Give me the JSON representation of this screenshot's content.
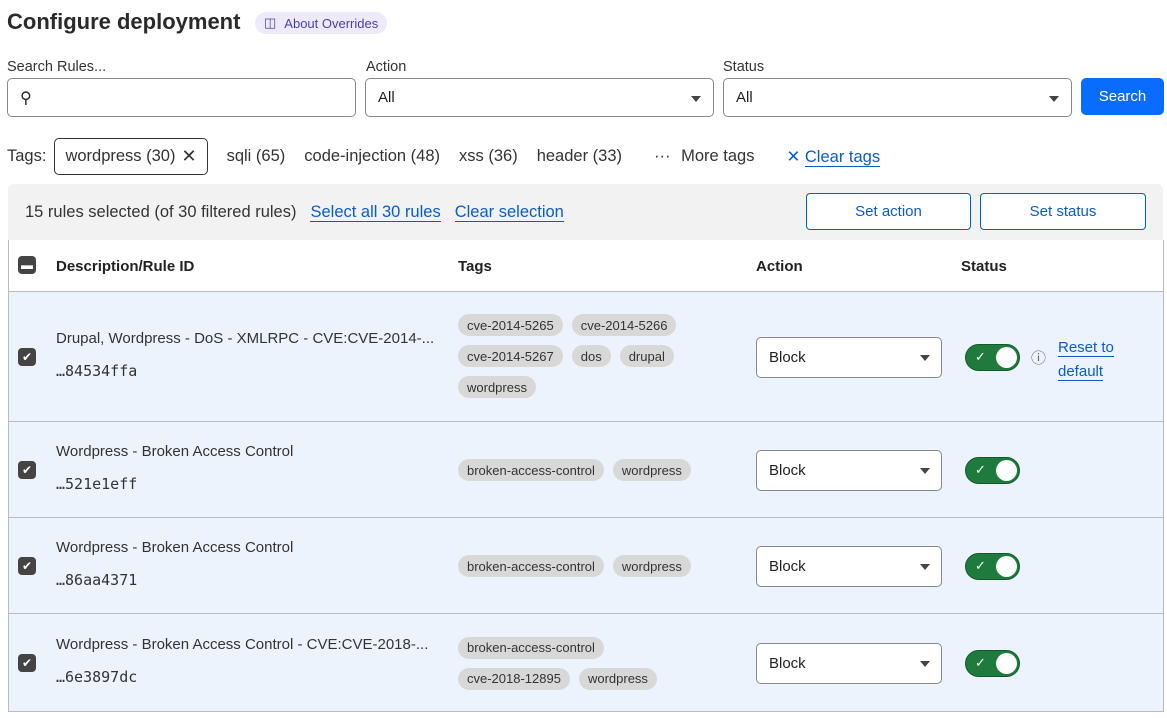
{
  "header": {
    "title": "Configure deployment",
    "about_label": "About Overrides"
  },
  "filters": {
    "search_label": "Search Rules...",
    "search_value": "",
    "action_label": "Action",
    "action_value": "All",
    "status_label": "Status",
    "status_value": "All",
    "search_button": "Search"
  },
  "tags": {
    "label": "Tags:",
    "selected": "wordpress (30)",
    "options": [
      "sqli (65)",
      "code-injection (48)",
      "xss (36)",
      "header (33)"
    ],
    "more": "More tags",
    "clear": "Clear tags"
  },
  "bulk": {
    "summary": "15 rules selected (of 30 filtered rules)",
    "select_all": "Select all 30 rules",
    "clear_selection": "Clear selection",
    "set_action": "Set action",
    "set_status": "Set status"
  },
  "table": {
    "columns": [
      "Description/Rule ID",
      "Tags",
      "Action",
      "Status"
    ],
    "rows": [
      {
        "description": "Drupal, Wordpress - DoS - XMLRPC - CVE:CVE-2014-...",
        "id": "…84534ffa",
        "tags": [
          "cve-2014-5265",
          "cve-2014-5266",
          "cve-2014-5267",
          "dos",
          "drupal",
          "wordpress"
        ],
        "action": "Block",
        "enabled": true,
        "reset": "Reset to default"
      },
      {
        "description": "Wordpress - Broken Access Control",
        "id": "…521e1eff",
        "tags": [
          "broken-access-control",
          "wordpress"
        ],
        "action": "Block",
        "enabled": true
      },
      {
        "description": "Wordpress - Broken Access Control",
        "id": "…86aa4371",
        "tags": [
          "broken-access-control",
          "wordpress"
        ],
        "action": "Block",
        "enabled": true
      },
      {
        "description": "Wordpress - Broken Access Control - CVE:CVE-2018-...",
        "id": "…6e3897dc",
        "tags": [
          "broken-access-control",
          "cve-2018-12895",
          "wordpress"
        ],
        "action": "Block",
        "enabled": true
      }
    ]
  },
  "colors": {
    "accent": "#0a6cff",
    "toggle_on": "#1f7a3e",
    "row_selected": "#edf3fd"
  }
}
